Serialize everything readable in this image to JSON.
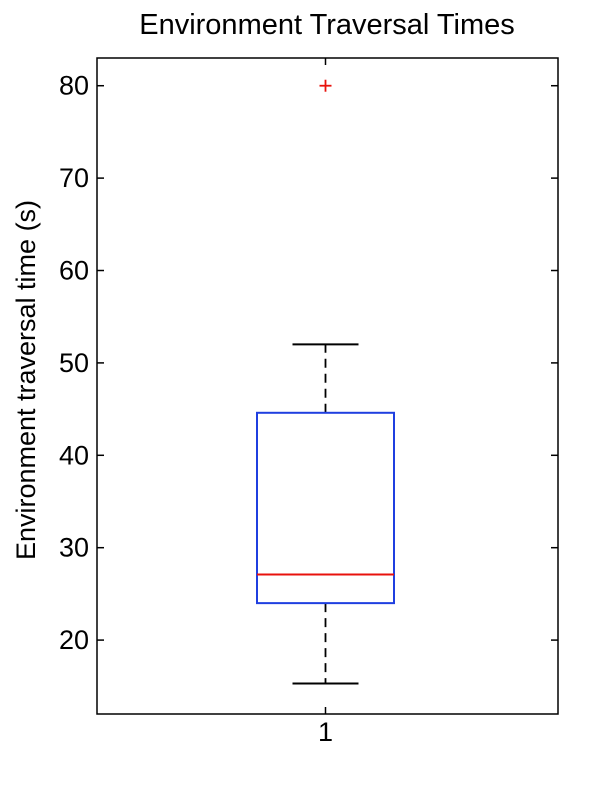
{
  "chart_data": {
    "type": "box",
    "title": "Environment Traversal Times",
    "xlabel": "",
    "ylabel": "Environment traversal time (s)",
    "categories": [
      "1"
    ],
    "yticks": [
      20,
      30,
      40,
      50,
      60,
      70,
      80
    ],
    "ylim": [
      12,
      83
    ],
    "grid": false,
    "boxes": [
      {
        "category": "1",
        "whisker_low": 15.3,
        "q1": 24.0,
        "median": 27.1,
        "q3": 44.6,
        "whisker_high": 52.0,
        "outliers": [
          80.0
        ]
      }
    ],
    "colors": {
      "box": "#1f3fe0",
      "median": "#e8120c",
      "whisker": "#000000",
      "outlier": "#e8120c"
    }
  }
}
